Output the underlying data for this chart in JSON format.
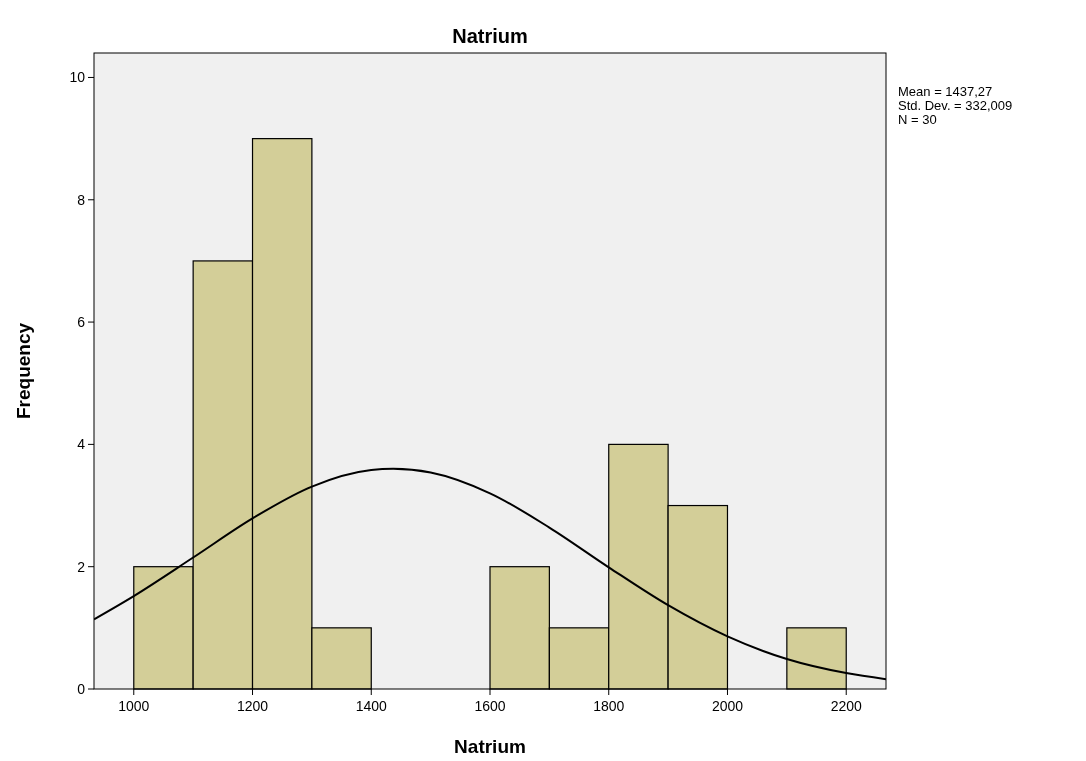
{
  "chart_data": {
    "type": "histogram",
    "title": "Natrium",
    "xlabel": "Natrium",
    "ylabel": "Frequency",
    "bins": [
      1000,
      1100,
      1200,
      1300,
      1400,
      1500,
      1600,
      1700,
      1800,
      1900,
      2000,
      2100,
      2200
    ],
    "values": [
      2,
      7,
      9,
      1,
      0,
      0,
      2,
      1,
      4,
      3,
      0,
      1
    ],
    "color": "#d3ce98",
    "series": [
      {
        "type": "line",
        "color": "#000000",
        "x": [
          933,
          1000,
          1100,
          1200,
          1300,
          1400,
          1437,
          1500,
          1600,
          1700,
          1800,
          1900,
          2000,
          2100,
          2200,
          2267
        ],
        "values": [
          1.14,
          1.52,
          2.15,
          2.79,
          3.31,
          3.58,
          3.6,
          3.54,
          3.2,
          2.64,
          1.99,
          1.37,
          0.86,
          0.49,
          0.26,
          0.16
        ]
      }
    ],
    "xlim": [
      933,
      2267
    ],
    "ylim": [
      0,
      10.4
    ],
    "xticks": [
      1000,
      1200,
      1400,
      1600,
      1800,
      2000,
      2200
    ],
    "yticks": [
      0,
      2,
      4,
      6,
      8,
      10
    ],
    "grid": false,
    "marker": "none",
    "line_style": "solid",
    "annotations": [
      "Mean = 1437,27",
      "Std. Dev. = 332,009",
      "N = 30"
    ]
  }
}
